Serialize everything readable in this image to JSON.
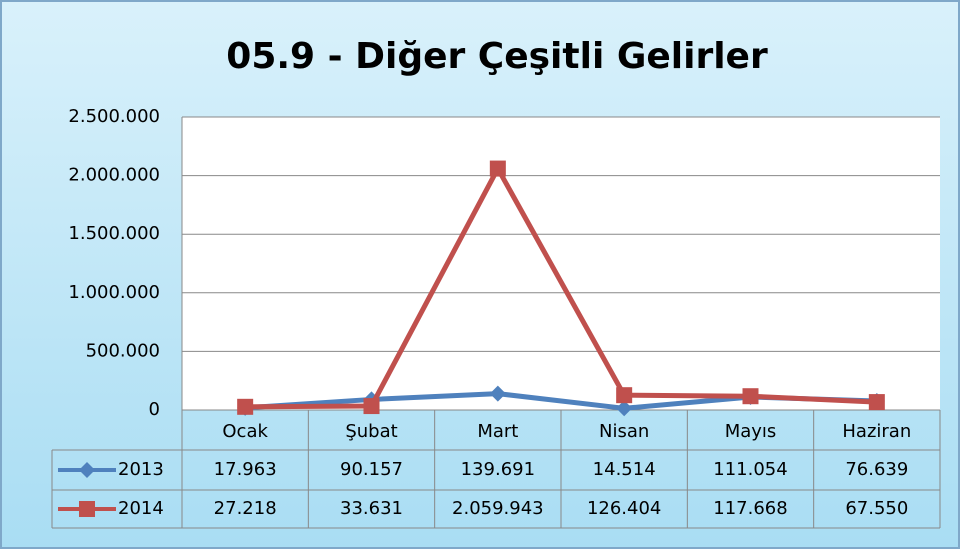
{
  "chart_data": {
    "type": "line",
    "title": "05.9 - Diğer Çeşitli Gelirler",
    "categories": [
      "Ocak",
      "Şubat",
      "Mart",
      "Nisan",
      "Mayıs",
      "Haziran"
    ],
    "series": [
      {
        "name": "2013",
        "color": "#4f81bd",
        "values": [
          17963,
          90157,
          139691,
          14514,
          111054,
          76639
        ],
        "value_labels": [
          "17.963",
          "90.157",
          "139.691",
          "14.514",
          "111.054",
          "76.639"
        ]
      },
      {
        "name": "2014",
        "color": "#c0504d",
        "values": [
          27218,
          33631,
          2059943,
          126404,
          117668,
          67550
        ],
        "value_labels": [
          "27.218",
          "33.631",
          "2.059.943",
          "126.404",
          "117.668",
          "67.550"
        ]
      }
    ],
    "ylim": [
      0,
      2500000
    ],
    "yticks": [
      0,
      {
        "value": 500000,
        "label": "500.000"
      },
      {
        "value": 1000000,
        "label": "1.000.000"
      },
      {
        "value": 1500000,
        "label": "1.500.000"
      },
      {
        "value": 2000000,
        "label": "2.000.000"
      },
      {
        "value": 2500000,
        "label": "2.500.000"
      }
    ],
    "grid": true
  }
}
